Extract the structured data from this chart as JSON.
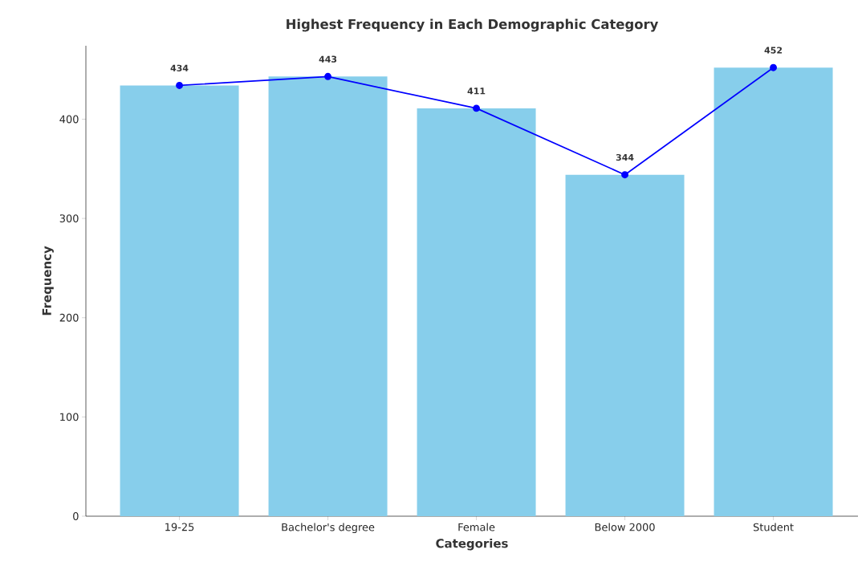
{
  "chart_data": {
    "type": "bar",
    "title": "Highest Frequency in Each Demographic Category",
    "xlabel": "Categories",
    "ylabel": "Frequency",
    "categories": [
      "19-25",
      "Bachelor's degree",
      "Female",
      "Below 2000",
      "Student"
    ],
    "series": [
      {
        "color": "#87ceeb",
        "values": [
          434,
          443,
          411,
          344,
          452
        ]
      },
      {
        "type": "line",
        "color": "#0000ff",
        "marker": "circle",
        "line_style": "solid",
        "values": [
          434,
          443,
          411,
          344,
          452
        ],
        "value_labels": [
          "434",
          "443",
          "411",
          "344",
          "452"
        ]
      }
    ],
    "ylim": [
      0,
      474
    ],
    "yticks": [
      0,
      100,
      200,
      300,
      400
    ],
    "grid": false
  }
}
